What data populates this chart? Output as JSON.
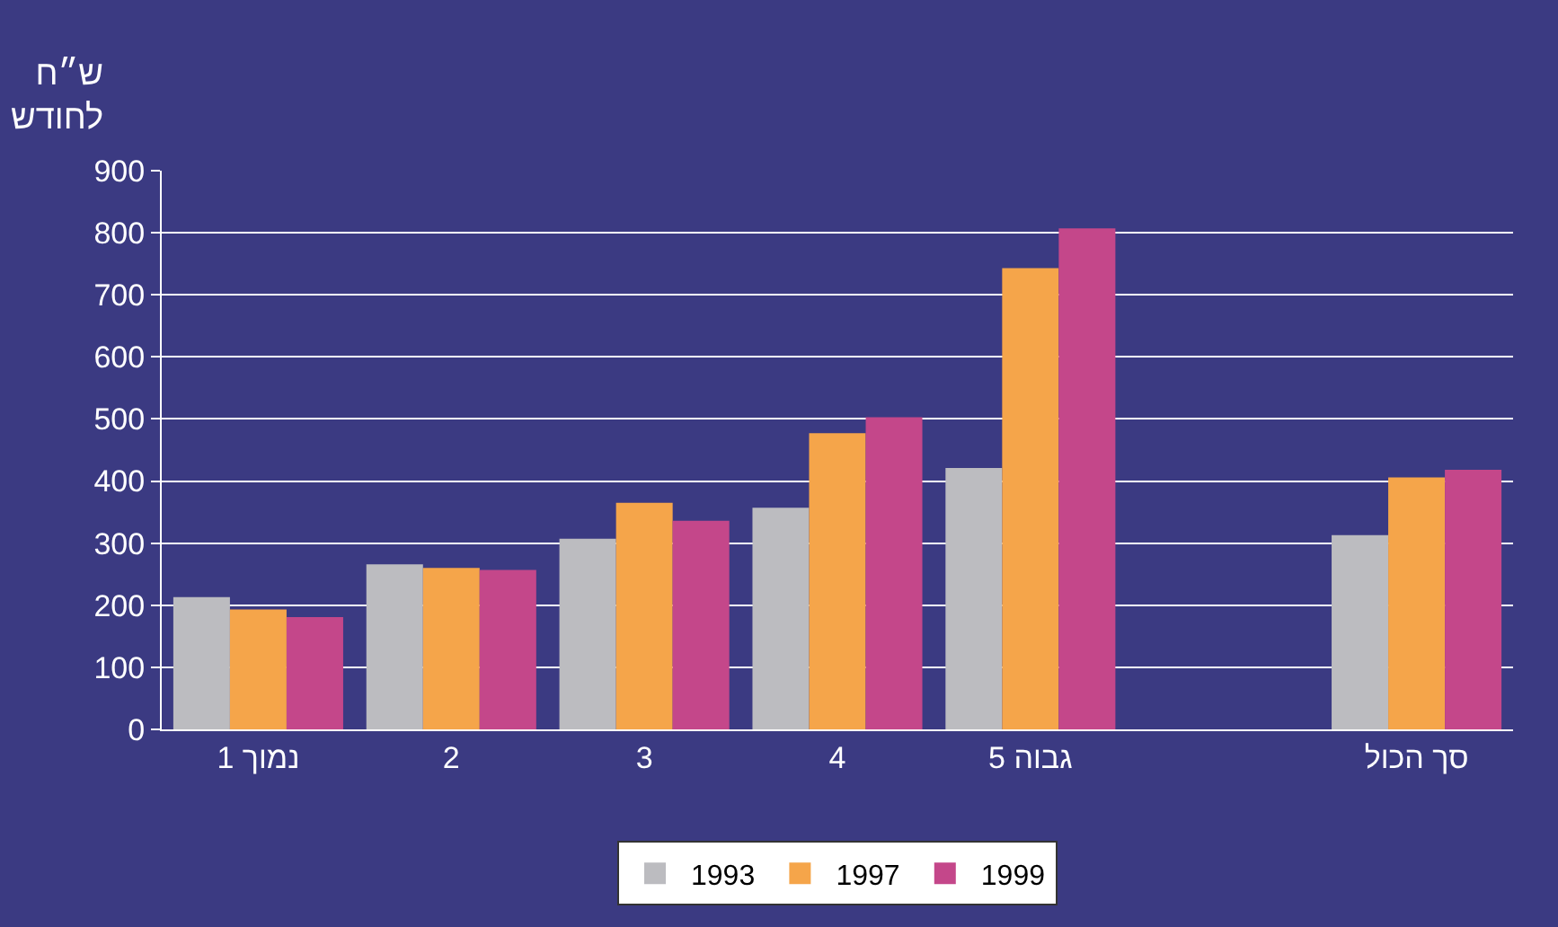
{
  "chart_data": {
    "type": "bar",
    "ylabel": "ש״ח\nלחודש",
    "categories": [
      "נמוך 1",
      "2",
      "3",
      "4",
      "גבוה 5",
      null,
      "סך הכול"
    ],
    "series": [
      {
        "name": "1993",
        "color": "#bcbcc0",
        "values": [
          213,
          266,
          307,
          357,
          421,
          null,
          313
        ]
      },
      {
        "name": "1997",
        "color": "#f5a54a",
        "values": [
          193,
          260,
          365,
          477,
          743,
          null,
          406
        ]
      },
      {
        "name": "1999",
        "color": "#c4478a",
        "values": [
          181,
          257,
          336,
          503,
          807,
          null,
          418
        ]
      }
    ],
    "ylim": [
      0,
      900
    ],
    "yticks": [
      0,
      100,
      200,
      300,
      400,
      500,
      600,
      700,
      800,
      900
    ],
    "grid": "y",
    "legend": "bottom"
  }
}
